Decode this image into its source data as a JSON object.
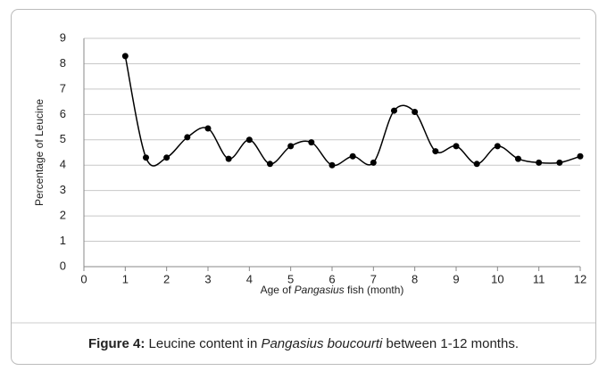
{
  "chart_data": {
    "type": "line",
    "x": [
      1,
      1.5,
      2,
      2.5,
      3,
      3.5,
      4,
      4.5,
      5,
      5.5,
      6,
      6.5,
      7,
      7.5,
      8,
      8.5,
      9,
      9.5,
      10,
      10.5,
      11,
      11.5,
      12
    ],
    "values": [
      8.3,
      4.3,
      4.3,
      5.1,
      5.45,
      4.25,
      5.0,
      4.05,
      4.75,
      4.9,
      4.0,
      4.35,
      4.1,
      6.15,
      6.1,
      4.55,
      4.75,
      4.05,
      4.75,
      4.25,
      4.1,
      4.1,
      4.35
    ],
    "color": "#000000",
    "xlim": [
      0,
      12
    ],
    "xticks": [
      0,
      1,
      2,
      3,
      4,
      5,
      6,
      7,
      8,
      9,
      10,
      11,
      12
    ],
    "ylim": [
      0,
      9
    ],
    "yticks": [
      0,
      1,
      2,
      3,
      4,
      5,
      6,
      7,
      8,
      9
    ],
    "grid": true,
    "smooth": true,
    "y_label": "Percentage of Leucine",
    "x_label": [
      "Age of ",
      "Pangasius",
      " fish (month)"
    ],
    "caption": [
      "Figure 4:",
      " Leucine content in ",
      "Pangasius boucourti",
      " between 1-12 months."
    ]
  }
}
